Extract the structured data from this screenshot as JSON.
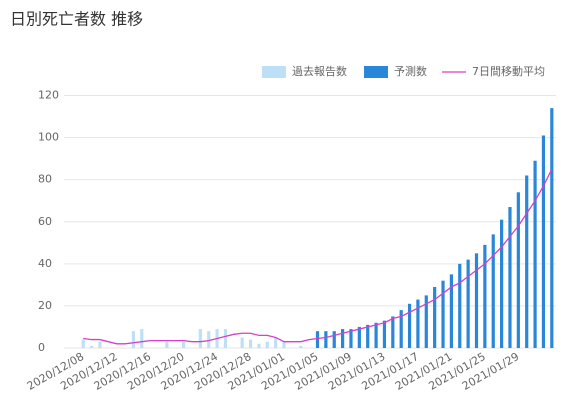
{
  "chart_data": {
    "type": "bar-line",
    "title": "日別死亡者数 推移",
    "categories": [
      "2020/12/08",
      null,
      null,
      null,
      "2020/12/12",
      null,
      null,
      null,
      "2020/12/16",
      null,
      null,
      null,
      "2020/12/20",
      null,
      null,
      null,
      "2020/12/24",
      null,
      null,
      null,
      "2020/12/28",
      null,
      null,
      null,
      "2021/01/01",
      null,
      null,
      null,
      "2021/01/05",
      null,
      null,
      null,
      "2021/01/09",
      null,
      null,
      null,
      "2021/01/13",
      null,
      null,
      null,
      "2021/01/17",
      null,
      null,
      null,
      "2021/01/21",
      null,
      null,
      null,
      "2021/01/25",
      null,
      null,
      null,
      "2021/01/29",
      null,
      null,
      null,
      null
    ],
    "series": [
      {
        "name": "過去報告数",
        "color": "#bde0f7",
        "kind": "bar",
        "values": [
          4,
          1,
          3,
          0,
          0,
          0,
          8,
          9,
          0,
          0,
          3,
          0,
          3,
          0,
          9,
          8,
          9,
          9,
          0,
          5,
          4,
          2,
          3,
          5,
          3,
          0,
          1,
          0,
          null,
          null,
          null,
          null,
          null,
          null,
          null,
          null,
          null,
          null,
          null,
          null,
          null,
          null,
          null,
          null,
          null,
          null,
          null,
          null,
          null,
          null,
          null,
          null,
          null,
          null,
          null,
          null,
          null
        ]
      },
      {
        "name": "予測数",
        "color": "#2a86d8",
        "kind": "bar",
        "values": [
          null,
          null,
          null,
          null,
          null,
          null,
          null,
          null,
          null,
          null,
          null,
          null,
          null,
          null,
          null,
          null,
          null,
          null,
          null,
          null,
          null,
          null,
          null,
          null,
          null,
          null,
          null,
          null,
          8,
          8,
          8,
          9,
          9,
          10,
          11,
          12,
          13,
          15,
          18,
          21,
          23,
          25,
          29,
          32,
          35,
          40,
          42,
          45,
          49,
          54,
          61,
          67,
          74,
          82,
          89,
          101,
          114
        ]
      },
      {
        "name": "7日間移動平均",
        "color": "#d63fc9",
        "kind": "line",
        "values": [
          4.5,
          4,
          4,
          3,
          2,
          2,
          2.5,
          3,
          3.5,
          3.5,
          3.5,
          3.5,
          3.5,
          3,
          3,
          3.5,
          4.5,
          5.5,
          6.5,
          7,
          7,
          6,
          6,
          5,
          3,
          3,
          3,
          4,
          4.5,
          5,
          6,
          7,
          8,
          9,
          10,
          11,
          12,
          14,
          15,
          17,
          19,
          21,
          23,
          26,
          29,
          31,
          34,
          37,
          40,
          44,
          48,
          53,
          58,
          64,
          70,
          77,
          85
        ]
      }
    ],
    "ylim": [
      0,
      125
    ],
    "yticks": [
      0,
      20,
      40,
      60,
      80,
      100,
      120
    ],
    "grid": true,
    "legend": "top-right"
  }
}
